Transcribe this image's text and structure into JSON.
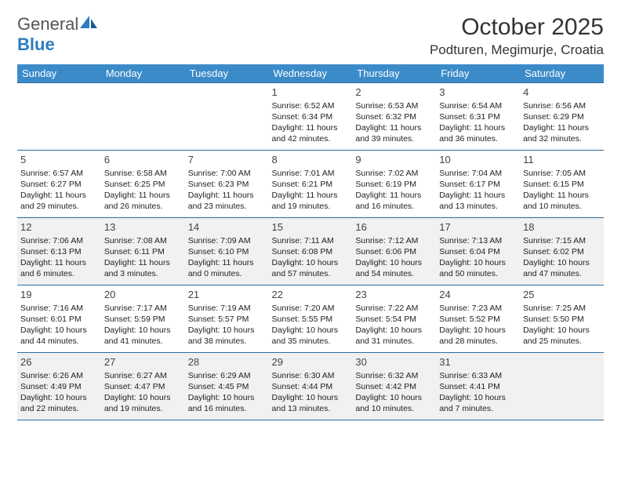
{
  "logo": {
    "word1": "General",
    "word2": "Blue"
  },
  "title": "October 2025",
  "location": "Podturen, Megimurje, Croatia",
  "colors": {
    "header_bg": "#3b8bc9",
    "header_text": "#ffffff",
    "rule": "#2d6ca0",
    "logo_gray": "#555555",
    "logo_blue": "#2d7cc1",
    "shade": "#f1f1f1",
    "text": "#222222"
  },
  "weekdays": [
    "Sunday",
    "Monday",
    "Tuesday",
    "Wednesday",
    "Thursday",
    "Friday",
    "Saturday"
  ],
  "weeks": [
    {
      "shaded": false,
      "days": [
        {
          "n": "",
          "sr": "",
          "ss": "",
          "dl": ""
        },
        {
          "n": "",
          "sr": "",
          "ss": "",
          "dl": ""
        },
        {
          "n": "",
          "sr": "",
          "ss": "",
          "dl": ""
        },
        {
          "n": "1",
          "sr": "Sunrise: 6:52 AM",
          "ss": "Sunset: 6:34 PM",
          "dl": "Daylight: 11 hours and 42 minutes."
        },
        {
          "n": "2",
          "sr": "Sunrise: 6:53 AM",
          "ss": "Sunset: 6:32 PM",
          "dl": "Daylight: 11 hours and 39 minutes."
        },
        {
          "n": "3",
          "sr": "Sunrise: 6:54 AM",
          "ss": "Sunset: 6:31 PM",
          "dl": "Daylight: 11 hours and 36 minutes."
        },
        {
          "n": "4",
          "sr": "Sunrise: 6:56 AM",
          "ss": "Sunset: 6:29 PM",
          "dl": "Daylight: 11 hours and 32 minutes."
        }
      ]
    },
    {
      "shaded": false,
      "days": [
        {
          "n": "5",
          "sr": "Sunrise: 6:57 AM",
          "ss": "Sunset: 6:27 PM",
          "dl": "Daylight: 11 hours and 29 minutes."
        },
        {
          "n": "6",
          "sr": "Sunrise: 6:58 AM",
          "ss": "Sunset: 6:25 PM",
          "dl": "Daylight: 11 hours and 26 minutes."
        },
        {
          "n": "7",
          "sr": "Sunrise: 7:00 AM",
          "ss": "Sunset: 6:23 PM",
          "dl": "Daylight: 11 hours and 23 minutes."
        },
        {
          "n": "8",
          "sr": "Sunrise: 7:01 AM",
          "ss": "Sunset: 6:21 PM",
          "dl": "Daylight: 11 hours and 19 minutes."
        },
        {
          "n": "9",
          "sr": "Sunrise: 7:02 AM",
          "ss": "Sunset: 6:19 PM",
          "dl": "Daylight: 11 hours and 16 minutes."
        },
        {
          "n": "10",
          "sr": "Sunrise: 7:04 AM",
          "ss": "Sunset: 6:17 PM",
          "dl": "Daylight: 11 hours and 13 minutes."
        },
        {
          "n": "11",
          "sr": "Sunrise: 7:05 AM",
          "ss": "Sunset: 6:15 PM",
          "dl": "Daylight: 11 hours and 10 minutes."
        }
      ]
    },
    {
      "shaded": true,
      "days": [
        {
          "n": "12",
          "sr": "Sunrise: 7:06 AM",
          "ss": "Sunset: 6:13 PM",
          "dl": "Daylight: 11 hours and 6 minutes."
        },
        {
          "n": "13",
          "sr": "Sunrise: 7:08 AM",
          "ss": "Sunset: 6:11 PM",
          "dl": "Daylight: 11 hours and 3 minutes."
        },
        {
          "n": "14",
          "sr": "Sunrise: 7:09 AM",
          "ss": "Sunset: 6:10 PM",
          "dl": "Daylight: 11 hours and 0 minutes."
        },
        {
          "n": "15",
          "sr": "Sunrise: 7:11 AM",
          "ss": "Sunset: 6:08 PM",
          "dl": "Daylight: 10 hours and 57 minutes."
        },
        {
          "n": "16",
          "sr": "Sunrise: 7:12 AM",
          "ss": "Sunset: 6:06 PM",
          "dl": "Daylight: 10 hours and 54 minutes."
        },
        {
          "n": "17",
          "sr": "Sunrise: 7:13 AM",
          "ss": "Sunset: 6:04 PM",
          "dl": "Daylight: 10 hours and 50 minutes."
        },
        {
          "n": "18",
          "sr": "Sunrise: 7:15 AM",
          "ss": "Sunset: 6:02 PM",
          "dl": "Daylight: 10 hours and 47 minutes."
        }
      ]
    },
    {
      "shaded": false,
      "days": [
        {
          "n": "19",
          "sr": "Sunrise: 7:16 AM",
          "ss": "Sunset: 6:01 PM",
          "dl": "Daylight: 10 hours and 44 minutes."
        },
        {
          "n": "20",
          "sr": "Sunrise: 7:17 AM",
          "ss": "Sunset: 5:59 PM",
          "dl": "Daylight: 10 hours and 41 minutes."
        },
        {
          "n": "21",
          "sr": "Sunrise: 7:19 AM",
          "ss": "Sunset: 5:57 PM",
          "dl": "Daylight: 10 hours and 38 minutes."
        },
        {
          "n": "22",
          "sr": "Sunrise: 7:20 AM",
          "ss": "Sunset: 5:55 PM",
          "dl": "Daylight: 10 hours and 35 minutes."
        },
        {
          "n": "23",
          "sr": "Sunrise: 7:22 AM",
          "ss": "Sunset: 5:54 PM",
          "dl": "Daylight: 10 hours and 31 minutes."
        },
        {
          "n": "24",
          "sr": "Sunrise: 7:23 AM",
          "ss": "Sunset: 5:52 PM",
          "dl": "Daylight: 10 hours and 28 minutes."
        },
        {
          "n": "25",
          "sr": "Sunrise: 7:25 AM",
          "ss": "Sunset: 5:50 PM",
          "dl": "Daylight: 10 hours and 25 minutes."
        }
      ]
    },
    {
      "shaded": true,
      "days": [
        {
          "n": "26",
          "sr": "Sunrise: 6:26 AM",
          "ss": "Sunset: 4:49 PM",
          "dl": "Daylight: 10 hours and 22 minutes."
        },
        {
          "n": "27",
          "sr": "Sunrise: 6:27 AM",
          "ss": "Sunset: 4:47 PM",
          "dl": "Daylight: 10 hours and 19 minutes."
        },
        {
          "n": "28",
          "sr": "Sunrise: 6:29 AM",
          "ss": "Sunset: 4:45 PM",
          "dl": "Daylight: 10 hours and 16 minutes."
        },
        {
          "n": "29",
          "sr": "Sunrise: 6:30 AM",
          "ss": "Sunset: 4:44 PM",
          "dl": "Daylight: 10 hours and 13 minutes."
        },
        {
          "n": "30",
          "sr": "Sunrise: 6:32 AM",
          "ss": "Sunset: 4:42 PM",
          "dl": "Daylight: 10 hours and 10 minutes."
        },
        {
          "n": "31",
          "sr": "Sunrise: 6:33 AM",
          "ss": "Sunset: 4:41 PM",
          "dl": "Daylight: 10 hours and 7 minutes."
        },
        {
          "n": "",
          "sr": "",
          "ss": "",
          "dl": ""
        }
      ]
    }
  ]
}
